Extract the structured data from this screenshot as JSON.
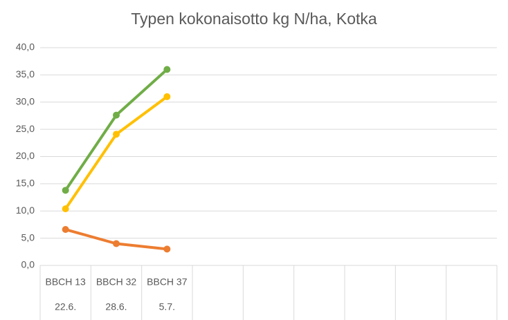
{
  "chart_data": {
    "type": "line",
    "title": "Typen kokonaisotto kg N/ha, Kotka",
    "categories": [
      "BBCH 13",
      "BBCH 32",
      "BBCH 37",
      null,
      null,
      null,
      null,
      null,
      null
    ],
    "category_dates": [
      "22.6.",
      "28.6.",
      "5.7.",
      null,
      null,
      null,
      null,
      null,
      null
    ],
    "series": [
      {
        "color": "#70ad47",
        "values": [
          13.8,
          27.6,
          36.0,
          null,
          null,
          null,
          null,
          null,
          null
        ]
      },
      {
        "color": "#ffc000",
        "values": [
          10.4,
          24.1,
          31.0,
          null,
          null,
          null,
          null,
          null,
          null
        ]
      },
      {
        "color": "#ed7d31",
        "values": [
          6.6,
          4.0,
          3.0,
          null,
          null,
          null,
          null,
          null,
          null
        ]
      }
    ],
    "ylim": [
      0,
      40
    ],
    "yticks": [
      {
        "value": 0,
        "label": "0,0"
      },
      {
        "value": 5,
        "label": "5,0"
      },
      {
        "value": 10,
        "label": "10,0"
      },
      {
        "value": 15,
        "label": "15,0"
      },
      {
        "value": 20,
        "label": "20,0"
      },
      {
        "value": 25,
        "label": "25,0"
      },
      {
        "value": 30,
        "label": "30,0"
      },
      {
        "value": 35,
        "label": "35,0"
      },
      {
        "value": 40,
        "label": "40,0"
      }
    ],
    "grid": true
  }
}
